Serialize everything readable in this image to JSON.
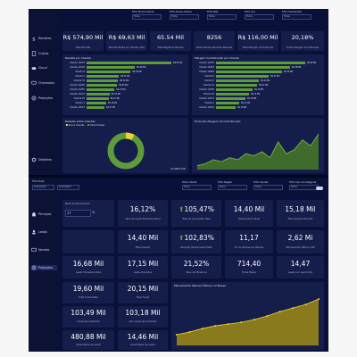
{
  "dashboard1": {
    "nav": [
      "Receitas",
      "Custos",
      "Cloud",
      "Chamados",
      "Projeções",
      "Detalhes"
    ],
    "filters": [
      {
        "label": "Filtro Nome Cliente",
        "value": "Todos"
      },
      {
        "label": "Filtro Nome Cliente",
        "value": "Todos"
      },
      {
        "label": "Filtro Mês",
        "value": "Todos"
      },
      {
        "label": "Filtro Ano",
        "value": "Todos"
      },
      {
        "label": "Filtro Top Receita",
        "value": "Todos"
      }
    ],
    "kpis": [
      {
        "value": "R$ 574,90 Mil",
        "label": "Total Receita"
      },
      {
        "value": "R$ 69,63 Mil",
        "label": "Receita Média por Cliente (LTV)"
      },
      {
        "value": "65.54 Mil",
        "label": "Total Registros Receita"
      },
      {
        "value": "8256",
        "label": "Total Clientes Receitas Mensais"
      },
      {
        "value": "R$ 116,00 Mil",
        "label": "Total Margem Contribuição"
      },
      {
        "value": "20,18%",
        "label": "Índice Margem Contribuição"
      }
    ],
    "receita_por_cliente": {
      "title": "Receita por Cliente",
      "rows": [
        {
          "label": "Cliente 10453",
          "value": "R$ 81 Mil",
          "pct": 1.0
        },
        {
          "label": "Cliente 10125",
          "value": "R$ 46 Mil",
          "pct": 0.57
        },
        {
          "label": "Cliente 8",
          "value": "R$ 42 Mil",
          "pct": 0.52
        },
        {
          "label": "Cliente 5",
          "value": "R$ 31 Mil",
          "pct": 0.38
        },
        {
          "label": "Cliente 32",
          "value": "R$ 30 Mil",
          "pct": 0.37
        },
        {
          "label": "Cliente 10462",
          "value": "R$ 29 Mil",
          "pct": 0.36
        },
        {
          "label": "Cliente 10455",
          "value": "R$ 27 Mil",
          "pct": 0.33
        },
        {
          "label": "Cliente 10474",
          "value": "R$ 22 Mil",
          "pct": 0.27
        },
        {
          "label": "Cliente 25",
          "value": "R$ 21 Mil",
          "pct": 0.26
        },
        {
          "label": "Cliente 2",
          "value": "R$ 19 Mil",
          "pct": 0.23
        },
        {
          "label": "Cliente 10513",
          "value": "R$ 17 Mil",
          "pct": 0.21
        }
      ]
    },
    "margem_por_cliente": {
      "title": "Margem Contribuição por Cliente",
      "rows": [
        {
          "label": "Cliente 10125",
          "value": "R$ 46 Mil",
          "pct": 1.0
        },
        {
          "label": "Cliente 10453",
          "value": "R$ 38 Mil",
          "pct": 0.83
        },
        {
          "label": "Cliente 10462",
          "value": "R$ 34 Mil",
          "pct": 0.74
        },
        {
          "label": "Cliente 8",
          "value": "R$ 27 Mil",
          "pct": 0.59
        },
        {
          "label": "Cliente 5",
          "value": "R$ 22 Mil",
          "pct": 0.48
        },
        {
          "label": "Cliente 32",
          "value": "R$ 21 Mil",
          "pct": 0.46
        },
        {
          "label": "Cliente 10455",
          "value": "R$ 19 Mil",
          "pct": 0.41
        },
        {
          "label": "Cliente 25",
          "value": "R$ 17 Mil",
          "pct": 0.37
        },
        {
          "label": "Cliente 10474",
          "value": "R$ 15 Mil",
          "pct": 0.33
        },
        {
          "label": "Cliente 2",
          "value": "R$ 12 Mil",
          "pct": 0.26
        },
        {
          "label": "Cliente 10513",
          "value": "R$ 10 Mil",
          "pct": 0.22
        }
      ]
    },
    "donut": {
      "title": "Relação entre Clientes",
      "legend": [
        "Novos Clientes",
        "Total Clientes"
      ],
      "slices": [
        0.08,
        0.92
      ],
      "center_label": "R$ 988,33 Mil"
    },
    "evolucao": {
      "title": "Evolução Margem de Contribuição",
      "values": [
        2,
        3,
        5,
        4,
        6,
        5,
        8,
        7,
        9,
        6,
        14,
        8,
        10,
        15,
        12,
        18
      ]
    }
  },
  "dashboard2": {
    "top_left": {
      "label": "Filtro Data",
      "from": "01/01/2020",
      "to": "31/12/2024"
    },
    "filters": [
      {
        "label": "Filtro Cliente",
        "value": "Todos"
      },
      {
        "label": "Filtro Região",
        "value": "Todos"
      },
      {
        "label": "Filtro Vendas",
        "value": "Todos"
      },
      {
        "label": "Filtro Tipo de Categoria",
        "value": "Todos"
      }
    ],
    "nav": [
      "Principal",
      "Leads",
      "Vendas",
      "Projeções"
    ],
    "controle": {
      "label": "Meta de Faturamento",
      "value": "17",
      "unit": "%"
    },
    "kpi_row1": [
      {
        "value": "16,12%",
        "label": "Taxa de Leads Fechados Atual"
      },
      {
        "value": "105,47%",
        "label": "Taxa de Conversão Total",
        "prefix": "⬆"
      },
      {
        "value": "14,40 Mil",
        "label": "Faturamento Atual"
      },
      {
        "value": "15,18 Mil",
        "label": "Faturamento Previsto"
      }
    ],
    "kpi_row2": [
      {
        "value": "14,40 Mil",
        "label": "Faturamento"
      },
      {
        "value": "102,83%",
        "label": "Variação Faturamento Meta",
        "prefix": "⬆"
      },
      {
        "value": "11,17",
        "label": "Nº de Vendas por Pessoa"
      },
      {
        "value": "2,62 Mi",
        "label": "Faturamento Último 12M"
      }
    ],
    "kpi_row3": [
      {
        "value": "16,68 Mil",
        "label": "Leads Fechados Meta"
      },
      {
        "value": "17,15 Mil",
        "label": "Leads Previstos"
      },
      {
        "value": "21,52%",
        "label": "Taxa de Eficiência"
      },
      {
        "value": "714,40",
        "label": "Ticket Médio"
      },
      {
        "value": "14,47",
        "label": "Leads por Lead (CPL)"
      }
    ],
    "kpi_row4": [
      {
        "value": "19,60 Mil",
        "label": "Total Ticket Meta"
      },
      {
        "value": "20,15 Mil",
        "label": "Total Ticket"
      }
    ],
    "kpi_row5": [
      {
        "value": "103,49 Mil",
        "label": "Leads Aproveitados"
      },
      {
        "value": "103,18 Mil",
        "label": "qtd. Leads Aproveitados"
      }
    ],
    "kpi_row6": [
      {
        "value": "480,88 Mil",
        "label": "Quantidade de Leads"
      },
      {
        "value": "14,46 Mil",
        "label": "Quantidade de Leads"
      }
    ],
    "area_chart": {
      "title": "Faturamento Mensal Últimos 12 Meses",
      "values": [
        1.2,
        1.5,
        1.9,
        2.2,
        2.4,
        2.6,
        2.9,
        3.3,
        3.8,
        4.2,
        4.6,
        5.2
      ]
    }
  }
}
